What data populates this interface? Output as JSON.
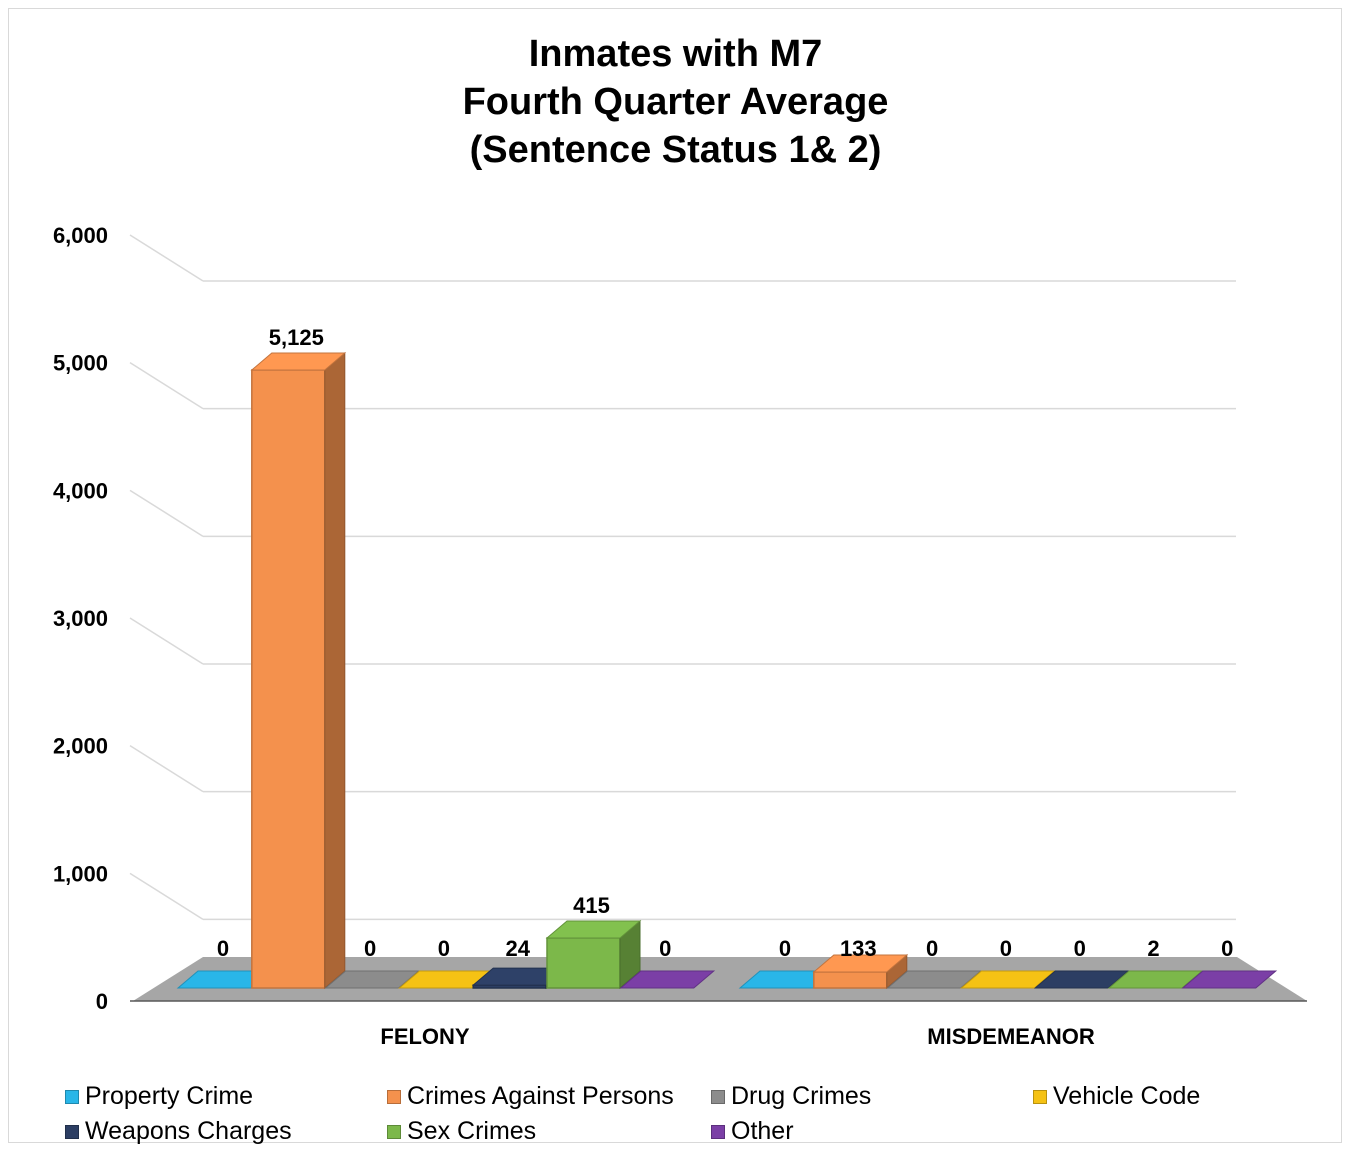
{
  "chart_data": {
    "type": "bar",
    "title": [
      "Inmates with M7",
      "Fourth Quarter Average",
      "(Sentence Status 1& 2)"
    ],
    "xlabel": "",
    "ylabel": "",
    "ylim": [
      0,
      6000
    ],
    "yticks": [
      0,
      1000,
      2000,
      3000,
      4000,
      5000,
      6000
    ],
    "ytick_labels": [
      "0",
      "1,000",
      "2,000",
      "3,000",
      "4,000",
      "5,000",
      "6,000"
    ],
    "categories": [
      "FELONY",
      "MISDEMEANOR"
    ],
    "series": [
      {
        "name": "Property Crime",
        "color": "#29b6e8",
        "values": [
          0,
          0
        ],
        "labels": [
          "0",
          "0"
        ]
      },
      {
        "name": "Crimes Against Persons",
        "color": "#f4914d",
        "values": [
          5125,
          133
        ],
        "labels": [
          "5,125",
          "133"
        ]
      },
      {
        "name": "Drug Crimes",
        "color": "#8c8c8c",
        "values": [
          0,
          0
        ],
        "labels": [
          "0",
          "0"
        ]
      },
      {
        "name": "Vehicle Code",
        "color": "#f5c214",
        "values": [
          0,
          0
        ],
        "labels": [
          "0",
          "0"
        ]
      },
      {
        "name": "Weapons Charges",
        "color": "#2c3e63",
        "values": [
          24,
          0
        ],
        "labels": [
          "24",
          "0"
        ]
      },
      {
        "name": "Sex Crimes",
        "color": "#7cb84a",
        "values": [
          415,
          2
        ],
        "labels": [
          "415",
          "2"
        ]
      },
      {
        "name": "Other",
        "color": "#7b3fa6",
        "values": [
          0,
          0
        ],
        "labels": [
          "0",
          "0"
        ]
      }
    ],
    "grid": true,
    "legend_position": "bottom",
    "style": "3d-clustered-column"
  }
}
